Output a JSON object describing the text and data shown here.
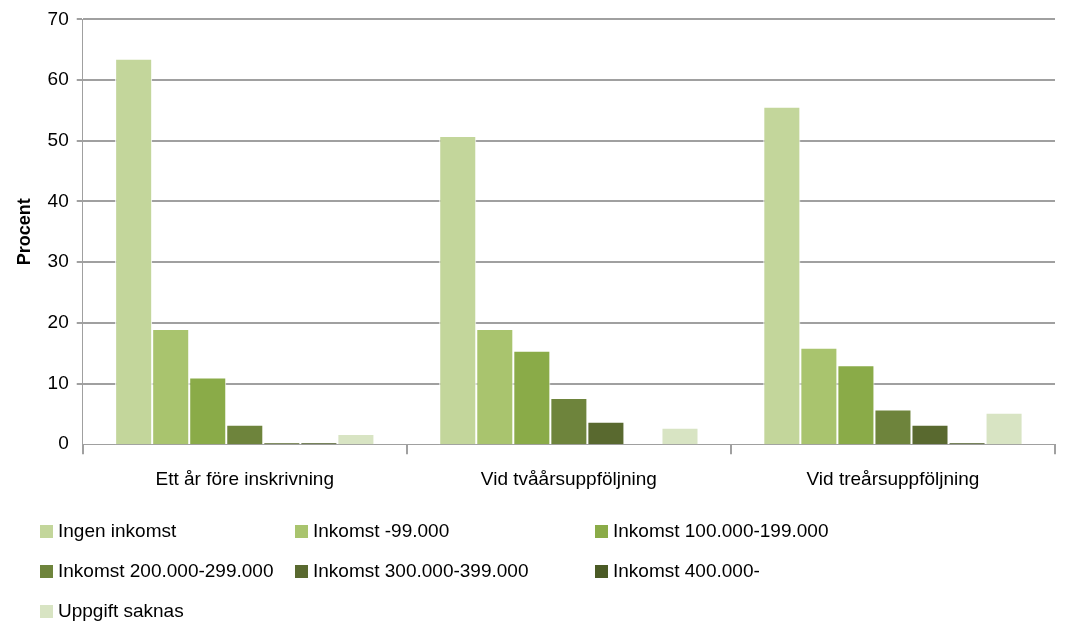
{
  "chart_data": {
    "type": "bar",
    "ylabel": "Procent",
    "categories": [
      "Ett år före inskrivning",
      "Vid tvåårsuppföljning",
      "Vid treårsuppföljning"
    ],
    "series": [
      {
        "name": "Ingen inkomst",
        "color": "#c3d69b",
        "values": [
          63.5,
          50.8,
          55.6
        ]
      },
      {
        "name": "Inkomst -99.000",
        "color": "#a9c46e",
        "values": [
          19,
          19,
          15.9
        ]
      },
      {
        "name": "Inkomst 100.000-199.000",
        "color": "#8aab48",
        "values": [
          11,
          15.4,
          13
        ]
      },
      {
        "name": "Inkomst 200.000-299.000",
        "color": "#6e843c",
        "values": [
          3.2,
          7.6,
          5.7
        ]
      },
      {
        "name": "Inkomst 300.000-399.000",
        "color": "#59692f",
        "values": [
          0.3,
          3.7,
          3.2
        ]
      },
      {
        "name": "Inkomst 400.000-",
        "color": "#4a5a25",
        "values": [
          0.3,
          0,
          0.3
        ]
      },
      {
        "name": "Uppgift saknas",
        "color": "#d8e4c3",
        "values": [
          1.7,
          2.7,
          5.2
        ]
      }
    ],
    "ylim": [
      0,
      70
    ],
    "yticks": [
      0,
      10,
      20,
      30,
      40,
      50,
      60,
      70
    ],
    "grid": "y",
    "legend": "bottom"
  }
}
